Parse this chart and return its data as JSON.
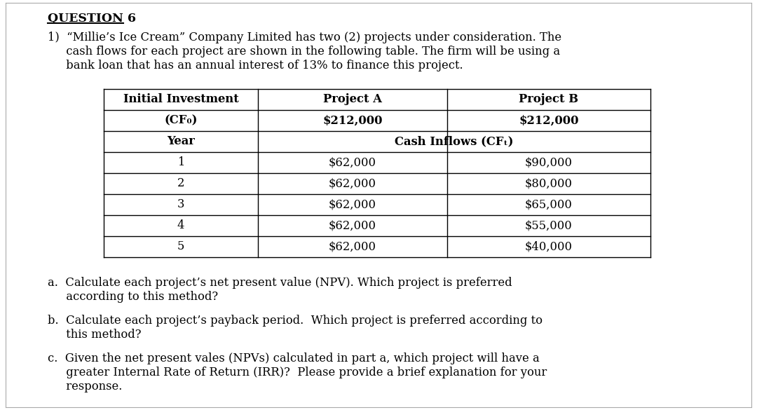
{
  "title": "QUESTION 6",
  "bg_color": "#ffffff",
  "text_color": "#000000",
  "font_size": 11.8,
  "title_font_size": 12.5,
  "intro_lines": [
    "1)  “Millie’s Ice Cream” Company Limited has two (2) projects under consideration. The",
    "     cash flows for each project are shown in the following table. The firm will be using a",
    "     bank loan that has an annual interest of 13% to finance this project."
  ],
  "table": {
    "header_row0": [
      "Initial Investment",
      "Project A",
      "Project B"
    ],
    "header_row1": [
      "(CF₀)",
      "$212,000",
      "$212,000"
    ],
    "header_row2": [
      "Year",
      "Cash Inflows (CFₜ)",
      ""
    ],
    "rows": [
      [
        "1",
        "$62,000",
        "$90,000"
      ],
      [
        "2",
        "$62,000",
        "$80,000"
      ],
      [
        "3",
        "$62,000",
        "$65,000"
      ],
      [
        "4",
        "$62,000",
        "$55,000"
      ],
      [
        "5",
        "$62,000",
        "$40,000"
      ]
    ]
  },
  "questions": [
    [
      "a.  Calculate each project’s net present value (NPV). Which project is preferred",
      "     according to this method?"
    ],
    [
      "b.  Calculate each project’s payback period.  Which project is preferred according to",
      "     this method?"
    ],
    [
      "c.  Given the net present vales (NPVs) calculated in part a, which project will have a",
      "     greater Internal Rate of Return (IRR)?  Please provide a brief explanation for your",
      "     response."
    ]
  ],
  "border_color": "#aaaaaa",
  "table_line_color": "#000000"
}
